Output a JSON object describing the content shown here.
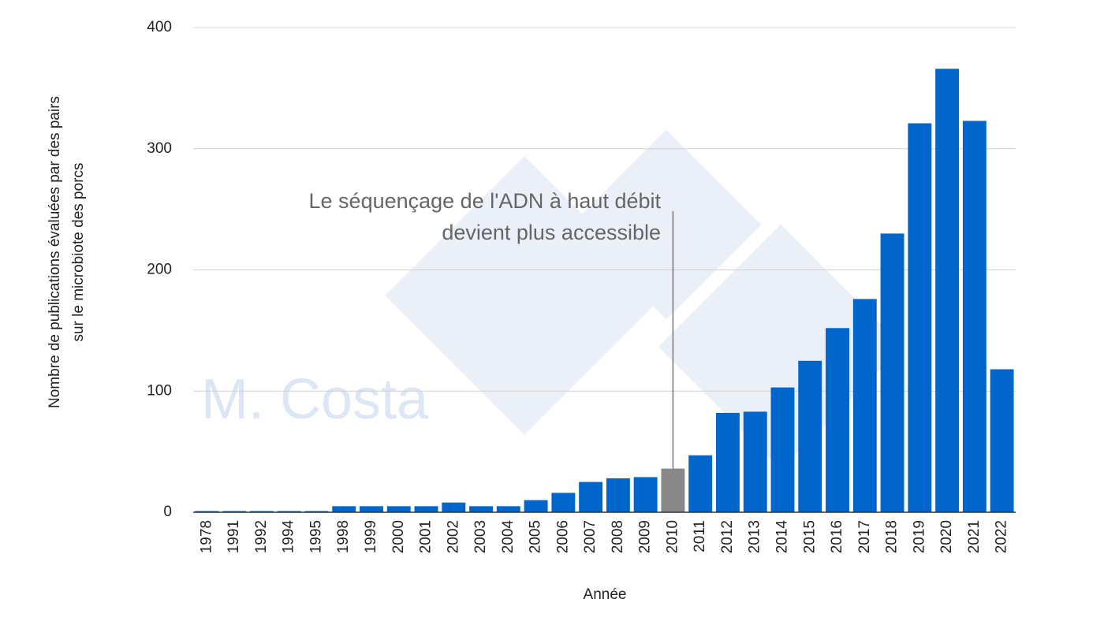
{
  "chart_data": {
    "type": "bar",
    "x_label": "Année",
    "y_label": [
      "Nombre de publications évaluées par des pairs",
      "sur le microbiote des porcs"
    ],
    "categories": [
      "1978",
      "1991",
      "1992",
      "1994",
      "1995",
      "1998",
      "1999",
      "2000",
      "2001",
      "2002",
      "2003",
      "2004",
      "2005",
      "2006",
      "2007",
      "2008",
      "2009",
      "2010",
      "2011",
      "2012",
      "2013",
      "2014",
      "2015",
      "2016",
      "2017",
      "2018",
      "2019",
      "2020",
      "2021",
      "2022"
    ],
    "values": [
      1,
      1,
      1,
      1,
      1,
      5,
      5,
      5,
      5,
      8,
      5,
      5,
      10,
      16,
      25,
      28,
      29,
      36,
      47,
      82,
      83,
      103,
      125,
      152,
      176,
      230,
      321,
      366,
      323,
      118
    ],
    "colors": [
      "#0066cc",
      "#0066cc",
      "#0066cc",
      "#0066cc",
      "#0066cc",
      "#0066cc",
      "#0066cc",
      "#0066cc",
      "#0066cc",
      "#0066cc",
      "#0066cc",
      "#0066cc",
      "#0066cc",
      "#0066cc",
      "#0066cc",
      "#0066cc",
      "#0066cc",
      "#888888",
      "#0066cc",
      "#0066cc",
      "#0066cc",
      "#0066cc",
      "#0066cc",
      "#0066cc",
      "#0066cc",
      "#0066cc",
      "#0066cc",
      "#0066cc",
      "#0066cc",
      "#0066cc"
    ],
    "ylim": [
      0,
      400
    ],
    "yticks": [
      0,
      100,
      200,
      300,
      400
    ],
    "grid": true,
    "annotation": {
      "text": [
        "Le séquençage de l'ADN à haut débit",
        "devient plus accessible"
      ],
      "category": "2010"
    },
    "watermark": "M. Costa"
  }
}
